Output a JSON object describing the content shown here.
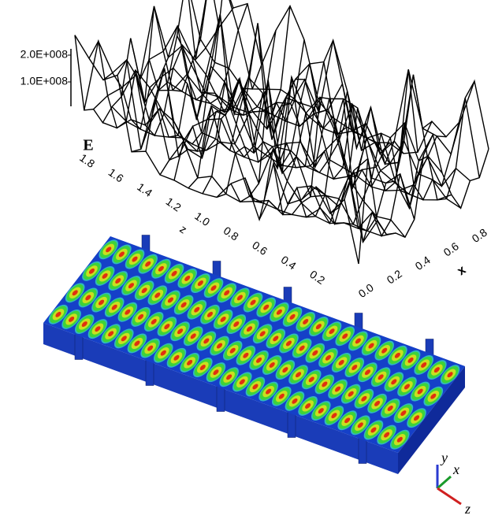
{
  "surface_plot": {
    "z_axis_label": "E",
    "z_ticks": [
      "2.0E+008",
      "1.0E+008"
    ],
    "y_axis_label": "z",
    "y_ticks": [
      "1.8",
      "1.6",
      "1.4",
      "1.2",
      "1.0",
      "0.8",
      "0.6",
      "0.4",
      "0.2"
    ],
    "x_axis_label": "x",
    "x_ticks": [
      "0.0",
      "0.2",
      "0.4",
      "0.6",
      "0.8"
    ]
  },
  "render": {
    "triad": {
      "y": "y",
      "x": "x",
      "z": "z"
    }
  }
}
